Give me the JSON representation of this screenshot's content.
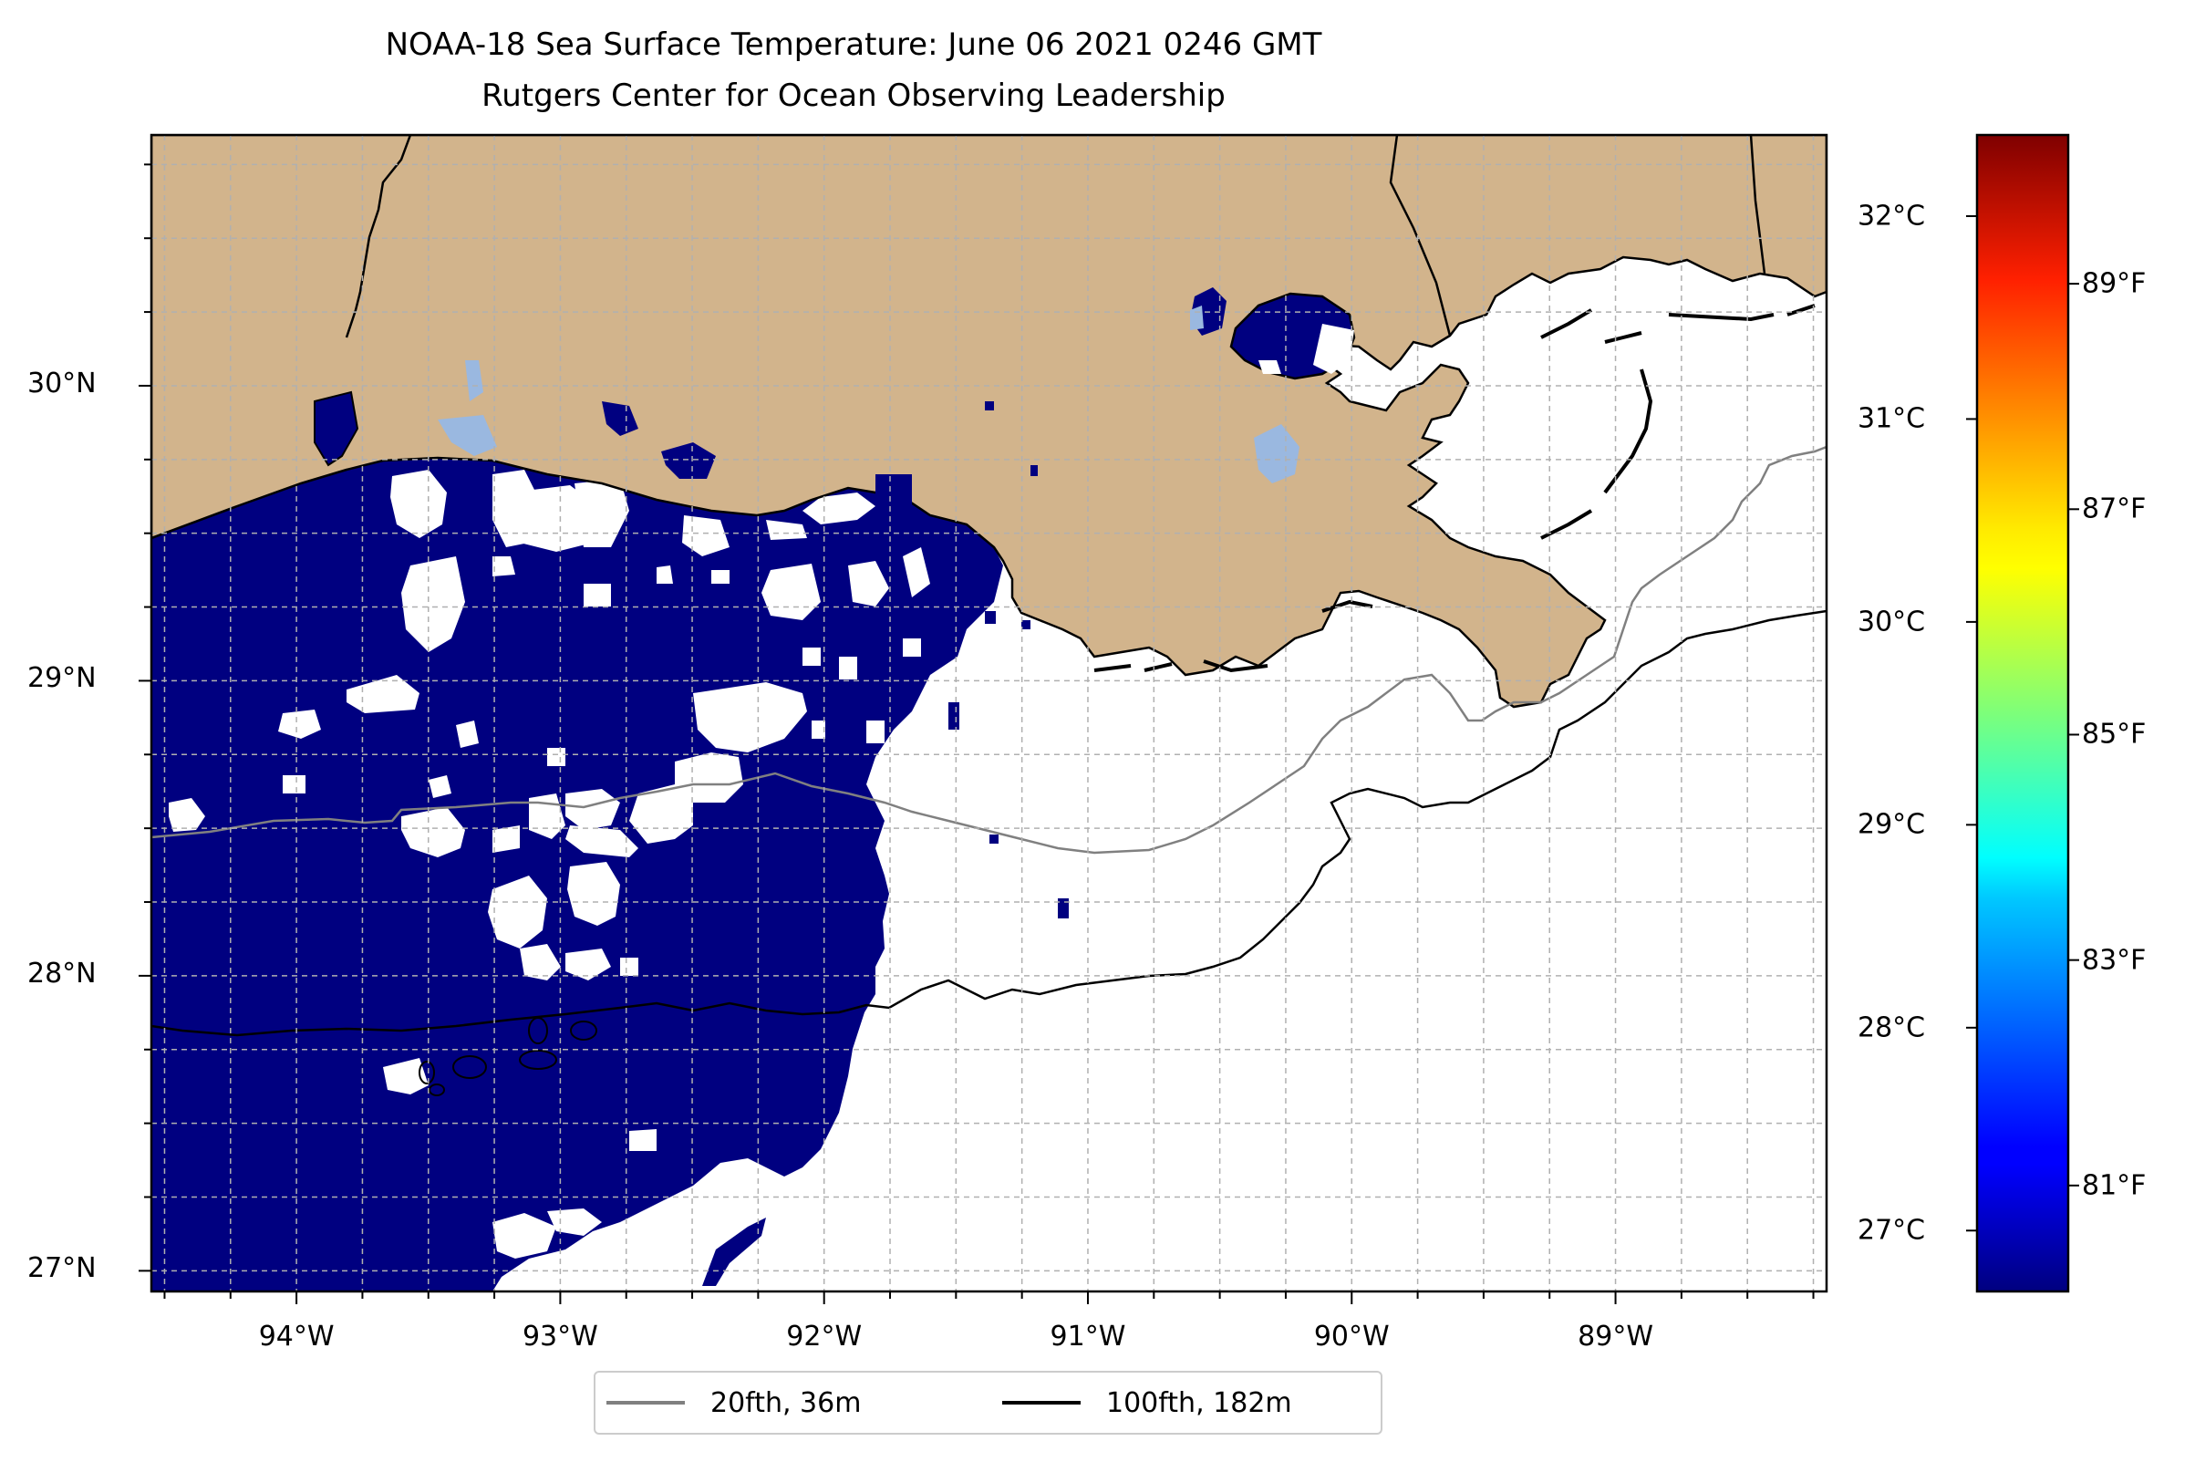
{
  "title": "NOAA-18 Sea Surface Temperature: June 06 2021 0246 GMT",
  "subtitle": "Rutgers Center for Ocean Observing Leadership",
  "map": {
    "lon_range": [
      -94.55,
      -88.2
    ],
    "lat_range": [
      26.93,
      30.85
    ],
    "lat_ticks": [
      {
        "value": 30,
        "label": "30°N"
      },
      {
        "value": 29,
        "label": "29°N"
      },
      {
        "value": 28,
        "label": "28°N"
      },
      {
        "value": 27,
        "label": "27°N"
      }
    ],
    "lon_ticks": [
      {
        "value": -94,
        "label": "94°W"
      },
      {
        "value": -93,
        "label": "93°W"
      },
      {
        "value": -92,
        "label": "92°W"
      },
      {
        "value": -91,
        "label": "91°W"
      },
      {
        "value": -90,
        "label": "90°W"
      },
      {
        "value": -89,
        "label": "89°W"
      }
    ],
    "grid": "dashed, every 0.25°",
    "colors": {
      "land": "#d2b48c",
      "sst_cold": "#000080",
      "inland_water": "#9ab8e0",
      "isobath_20": "#808080",
      "isobath_100": "#000000"
    }
  },
  "colorbar": {
    "colormap": "jet",
    "celsius_range": [
      26.7,
      32.4
    ],
    "celsius_ticks": [
      {
        "value": 32,
        "label": "32°C"
      },
      {
        "value": 31,
        "label": "31°C"
      },
      {
        "value": 30,
        "label": "30°C"
      },
      {
        "value": 29,
        "label": "29°C"
      },
      {
        "value": 28,
        "label": "28°C"
      },
      {
        "value": 27,
        "label": "27°C"
      }
    ],
    "fahrenheit_ticks": [
      {
        "value": 89,
        "label": "89°F"
      },
      {
        "value": 87,
        "label": "87°F"
      },
      {
        "value": 85,
        "label": "85°F"
      },
      {
        "value": 83,
        "label": "83°F"
      },
      {
        "value": 81,
        "label": "81°F"
      }
    ]
  },
  "legend": {
    "items": [
      {
        "label": "20fth, 36m",
        "color": "#808080"
      },
      {
        "label": "100fth, 182m",
        "color": "#000000"
      }
    ]
  }
}
